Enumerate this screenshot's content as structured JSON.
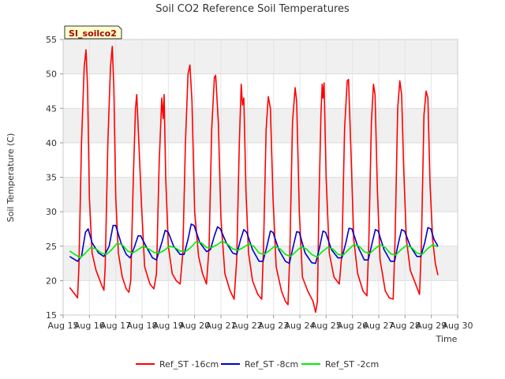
{
  "chart_data": {
    "type": "line",
    "title": "Soil CO2 Reference Soil Temperatures",
    "xlabel": "Time",
    "ylabel": "Soil Temperature (C)",
    "badge": "SI_soilco2",
    "ylim": [
      15,
      55
    ],
    "xlim": [
      15,
      30
    ],
    "yticks": [
      15,
      20,
      25,
      30,
      35,
      40,
      45,
      50,
      55
    ],
    "xticks": [
      {
        "x": 15,
        "label": "Aug 15"
      },
      {
        "x": 16,
        "label": "Aug 16"
      },
      {
        "x": 17,
        "label": "Aug 17"
      },
      {
        "x": 18,
        "label": "Aug 18"
      },
      {
        "x": 19,
        "label": "Aug 19"
      },
      {
        "x": 20,
        "label": "Aug 20"
      },
      {
        "x": 21,
        "label": "Aug 21"
      },
      {
        "x": 22,
        "label": "Aug 22"
      },
      {
        "x": 23,
        "label": "Aug 23"
      },
      {
        "x": 24,
        "label": "Aug 24"
      },
      {
        "x": 25,
        "label": "Aug 25"
      },
      {
        "x": 26,
        "label": "Aug 26"
      },
      {
        "x": 27,
        "label": "Aug 27"
      },
      {
        "x": 28,
        "label": "Aug 28"
      },
      {
        "x": 29,
        "label": "Aug 29"
      },
      {
        "x": 30,
        "label": "Aug 30"
      }
    ],
    "grid": true,
    "legend_position": "bottom",
    "series": [
      {
        "name": "Ref_ST -16cm",
        "color": "#ff0000",
        "points": [
          [
            15.25,
            19.0
          ],
          [
            15.45,
            18.0
          ],
          [
            15.55,
            17.5
          ],
          [
            15.6,
            22.0
          ],
          [
            15.7,
            40.0
          ],
          [
            15.8,
            51.0
          ],
          [
            15.87,
            53.5
          ],
          [
            15.93,
            48.0
          ],
          [
            16.0,
            32.0
          ],
          [
            16.1,
            24.0
          ],
          [
            16.25,
            21.5
          ],
          [
            16.45,
            19.5
          ],
          [
            16.55,
            18.6
          ],
          [
            16.6,
            22.0
          ],
          [
            16.7,
            40.0
          ],
          [
            16.8,
            51.0
          ],
          [
            16.87,
            54.0
          ],
          [
            16.93,
            48.0
          ],
          [
            17.0,
            32.0
          ],
          [
            17.1,
            24.0
          ],
          [
            17.25,
            20.5
          ],
          [
            17.4,
            18.8
          ],
          [
            17.5,
            18.3
          ],
          [
            17.57,
            20.0
          ],
          [
            17.67,
            35.0
          ],
          [
            17.75,
            45.0
          ],
          [
            17.8,
            47.0
          ],
          [
            17.88,
            40.0
          ],
          [
            17.98,
            31.0
          ],
          [
            18.1,
            22.0
          ],
          [
            18.3,
            19.5
          ],
          [
            18.45,
            18.8
          ],
          [
            18.55,
            21.0
          ],
          [
            18.65,
            37.0
          ],
          [
            18.75,
            46.5
          ],
          [
            18.8,
            43.5
          ],
          [
            18.84,
            47.0
          ],
          [
            18.9,
            35.0
          ],
          [
            19.0,
            25.0
          ],
          [
            19.15,
            21.0
          ],
          [
            19.3,
            20.0
          ],
          [
            19.45,
            19.5
          ],
          [
            19.55,
            24.0
          ],
          [
            19.65,
            40.0
          ],
          [
            19.75,
            50.0
          ],
          [
            19.82,
            51.3
          ],
          [
            19.9,
            46.0
          ],
          [
            20.0,
            30.0
          ],
          [
            20.15,
            23.5
          ],
          [
            20.3,
            21.0
          ],
          [
            20.45,
            19.5
          ],
          [
            20.55,
            25.0
          ],
          [
            20.65,
            42.0
          ],
          [
            20.75,
            49.5
          ],
          [
            20.8,
            49.8
          ],
          [
            20.9,
            43.0
          ],
          [
            21.0,
            29.0
          ],
          [
            21.15,
            21.0
          ],
          [
            21.35,
            18.5
          ],
          [
            21.5,
            17.3
          ],
          [
            21.6,
            23.0
          ],
          [
            21.7,
            40.0
          ],
          [
            21.77,
            48.5
          ],
          [
            21.82,
            45.5
          ],
          [
            21.87,
            46.5
          ],
          [
            21.95,
            33.0
          ],
          [
            22.05,
            24.0
          ],
          [
            22.2,
            20.0
          ],
          [
            22.4,
            18.0
          ],
          [
            22.55,
            17.3
          ],
          [
            22.62,
            25.0
          ],
          [
            22.72,
            42.0
          ],
          [
            22.8,
            46.7
          ],
          [
            22.88,
            45.0
          ],
          [
            22.98,
            32.0
          ],
          [
            23.1,
            22.0
          ],
          [
            23.3,
            18.5
          ],
          [
            23.45,
            17.0
          ],
          [
            23.55,
            16.5
          ],
          [
            23.62,
            24.0
          ],
          [
            23.72,
            43.0
          ],
          [
            23.82,
            48.0
          ],
          [
            23.88,
            46.0
          ],
          [
            23.98,
            30.0
          ],
          [
            24.1,
            20.5
          ],
          [
            24.3,
            18.5
          ],
          [
            24.5,
            17.0
          ],
          [
            24.6,
            15.4
          ],
          [
            24.67,
            17.0
          ],
          [
            24.72,
            30.0
          ],
          [
            24.8,
            44.0
          ],
          [
            24.85,
            48.5
          ],
          [
            24.88,
            46.5
          ],
          [
            24.92,
            48.7
          ],
          [
            25.0,
            35.0
          ],
          [
            25.12,
            24.0
          ],
          [
            25.3,
            20.5
          ],
          [
            25.5,
            19.5
          ],
          [
            25.6,
            24.0
          ],
          [
            25.7,
            42.0
          ],
          [
            25.8,
            49.0
          ],
          [
            25.85,
            49.2
          ],
          [
            25.95,
            38.0
          ],
          [
            26.05,
            26.0
          ],
          [
            26.2,
            21.0
          ],
          [
            26.4,
            18.5
          ],
          [
            26.55,
            17.8
          ],
          [
            26.62,
            25.0
          ],
          [
            26.72,
            43.0
          ],
          [
            26.8,
            48.5
          ],
          [
            26.86,
            47.0
          ],
          [
            26.95,
            33.0
          ],
          [
            27.05,
            23.0
          ],
          [
            27.25,
            18.5
          ],
          [
            27.4,
            17.5
          ],
          [
            27.55,
            17.3
          ],
          [
            27.62,
            26.0
          ],
          [
            27.72,
            45.0
          ],
          [
            27.8,
            49.0
          ],
          [
            27.87,
            47.0
          ],
          [
            27.95,
            36.0
          ],
          [
            28.05,
            26.0
          ],
          [
            28.2,
            21.5
          ],
          [
            28.4,
            19.5
          ],
          [
            28.55,
            18.0
          ],
          [
            28.62,
            25.0
          ],
          [
            28.72,
            44.0
          ],
          [
            28.8,
            47.5
          ],
          [
            28.87,
            46.5
          ],
          [
            28.95,
            34.0
          ],
          [
            29.05,
            26.0
          ],
          [
            29.15,
            22.5
          ],
          [
            29.25,
            20.8
          ]
        ]
      },
      {
        "name": "Ref_ST -8cm",
        "color": "#0000cc",
        "points": [
          [
            15.25,
            23.5
          ],
          [
            15.55,
            22.8
          ],
          [
            15.7,
            23.5
          ],
          [
            15.85,
            27.0
          ],
          [
            15.95,
            27.5
          ],
          [
            16.1,
            25.5
          ],
          [
            16.35,
            24.0
          ],
          [
            16.55,
            23.5
          ],
          [
            16.75,
            25.0
          ],
          [
            16.9,
            28.0
          ],
          [
            17.0,
            28.0
          ],
          [
            17.2,
            25.5
          ],
          [
            17.4,
            23.8
          ],
          [
            17.55,
            23.3
          ],
          [
            17.72,
            25.0
          ],
          [
            17.85,
            26.5
          ],
          [
            17.95,
            26.5
          ],
          [
            18.15,
            25.0
          ],
          [
            18.4,
            23.3
          ],
          [
            18.55,
            23.0
          ],
          [
            18.75,
            25.5
          ],
          [
            18.88,
            27.3
          ],
          [
            19.0,
            27.0
          ],
          [
            19.2,
            25.0
          ],
          [
            19.45,
            23.8
          ],
          [
            19.6,
            23.8
          ],
          [
            19.75,
            26.0
          ],
          [
            19.87,
            28.2
          ],
          [
            19.98,
            28.0
          ],
          [
            20.2,
            25.5
          ],
          [
            20.45,
            24.2
          ],
          [
            20.6,
            24.5
          ],
          [
            20.75,
            26.5
          ],
          [
            20.87,
            27.8
          ],
          [
            20.98,
            27.5
          ],
          [
            21.2,
            25.5
          ],
          [
            21.45,
            24.0
          ],
          [
            21.6,
            23.8
          ],
          [
            21.75,
            26.0
          ],
          [
            21.87,
            27.4
          ],
          [
            21.98,
            27.0
          ],
          [
            22.2,
            24.5
          ],
          [
            22.45,
            22.8
          ],
          [
            22.6,
            22.8
          ],
          [
            22.75,
            25.0
          ],
          [
            22.88,
            27.2
          ],
          [
            22.98,
            27.0
          ],
          [
            23.2,
            24.5
          ],
          [
            23.45,
            22.8
          ],
          [
            23.6,
            22.5
          ],
          [
            23.75,
            25.0
          ],
          [
            23.88,
            27.1
          ],
          [
            23.98,
            27.0
          ],
          [
            24.2,
            24.0
          ],
          [
            24.45,
            22.6
          ],
          [
            24.6,
            22.5
          ],
          [
            24.75,
            24.8
          ],
          [
            24.88,
            27.2
          ],
          [
            24.98,
            27.0
          ],
          [
            25.2,
            24.5
          ],
          [
            25.45,
            23.3
          ],
          [
            25.6,
            23.3
          ],
          [
            25.75,
            25.5
          ],
          [
            25.87,
            27.6
          ],
          [
            25.98,
            27.5
          ],
          [
            26.2,
            25.0
          ],
          [
            26.45,
            23.0
          ],
          [
            26.6,
            23.0
          ],
          [
            26.75,
            25.5
          ],
          [
            26.87,
            27.4
          ],
          [
            26.98,
            27.2
          ],
          [
            27.2,
            24.5
          ],
          [
            27.45,
            22.8
          ],
          [
            27.6,
            22.8
          ],
          [
            27.75,
            25.5
          ],
          [
            27.87,
            27.4
          ],
          [
            27.98,
            27.2
          ],
          [
            28.2,
            25.0
          ],
          [
            28.45,
            23.5
          ],
          [
            28.6,
            23.5
          ],
          [
            28.75,
            25.5
          ],
          [
            28.87,
            27.7
          ],
          [
            28.98,
            27.5
          ],
          [
            29.1,
            26.0
          ],
          [
            29.25,
            25.0
          ]
        ]
      },
      {
        "name": "Ref_ST -2cm",
        "color": "#00ee00",
        "points": [
          [
            15.25,
            24.3
          ],
          [
            15.45,
            23.8
          ],
          [
            15.65,
            23.3
          ],
          [
            15.85,
            24.0
          ],
          [
            16.05,
            24.8
          ],
          [
            16.25,
            24.6
          ],
          [
            16.45,
            24.0
          ],
          [
            16.65,
            23.8
          ],
          [
            16.85,
            24.5
          ],
          [
            17.05,
            25.4
          ],
          [
            17.25,
            25.2
          ],
          [
            17.45,
            24.3
          ],
          [
            17.65,
            24.0
          ],
          [
            17.85,
            24.5
          ],
          [
            18.05,
            25.0
          ],
          [
            18.25,
            24.6
          ],
          [
            18.45,
            24.1
          ],
          [
            18.65,
            24.0
          ],
          [
            18.85,
            24.4
          ],
          [
            19.05,
            25.0
          ],
          [
            19.25,
            24.8
          ],
          [
            19.45,
            24.3
          ],
          [
            19.65,
            24.2
          ],
          [
            19.85,
            24.8
          ],
          [
            20.05,
            25.6
          ],
          [
            20.25,
            25.5
          ],
          [
            20.45,
            24.8
          ],
          [
            20.65,
            24.8
          ],
          [
            20.85,
            25.2
          ],
          [
            21.05,
            25.7
          ],
          [
            21.25,
            25.3
          ],
          [
            21.45,
            24.6
          ],
          [
            21.65,
            24.4
          ],
          [
            21.85,
            24.8
          ],
          [
            22.05,
            25.3
          ],
          [
            22.25,
            25.0
          ],
          [
            22.45,
            24.0
          ],
          [
            22.65,
            23.8
          ],
          [
            22.85,
            24.4
          ],
          [
            23.05,
            25.0
          ],
          [
            23.25,
            24.6
          ],
          [
            23.45,
            23.8
          ],
          [
            23.65,
            23.5
          ],
          [
            23.85,
            24.2
          ],
          [
            24.05,
            24.9
          ],
          [
            24.25,
            24.6
          ],
          [
            24.45,
            23.8
          ],
          [
            24.65,
            23.4
          ],
          [
            24.85,
            24.2
          ],
          [
            25.05,
            24.8
          ],
          [
            25.25,
            24.6
          ],
          [
            25.45,
            23.8
          ],
          [
            25.65,
            23.7
          ],
          [
            25.85,
            24.5
          ],
          [
            26.05,
            25.2
          ],
          [
            26.25,
            25.0
          ],
          [
            26.45,
            24.2
          ],
          [
            26.65,
            23.9
          ],
          [
            26.85,
            24.6
          ],
          [
            27.05,
            25.2
          ],
          [
            27.25,
            24.8
          ],
          [
            27.45,
            23.9
          ],
          [
            27.65,
            23.7
          ],
          [
            27.85,
            24.5
          ],
          [
            28.05,
            25.1
          ],
          [
            28.25,
            24.8
          ],
          [
            28.45,
            24.0
          ],
          [
            28.65,
            23.8
          ],
          [
            28.85,
            24.6
          ],
          [
            29.05,
            25.2
          ],
          [
            29.25,
            24.9
          ]
        ]
      }
    ]
  }
}
